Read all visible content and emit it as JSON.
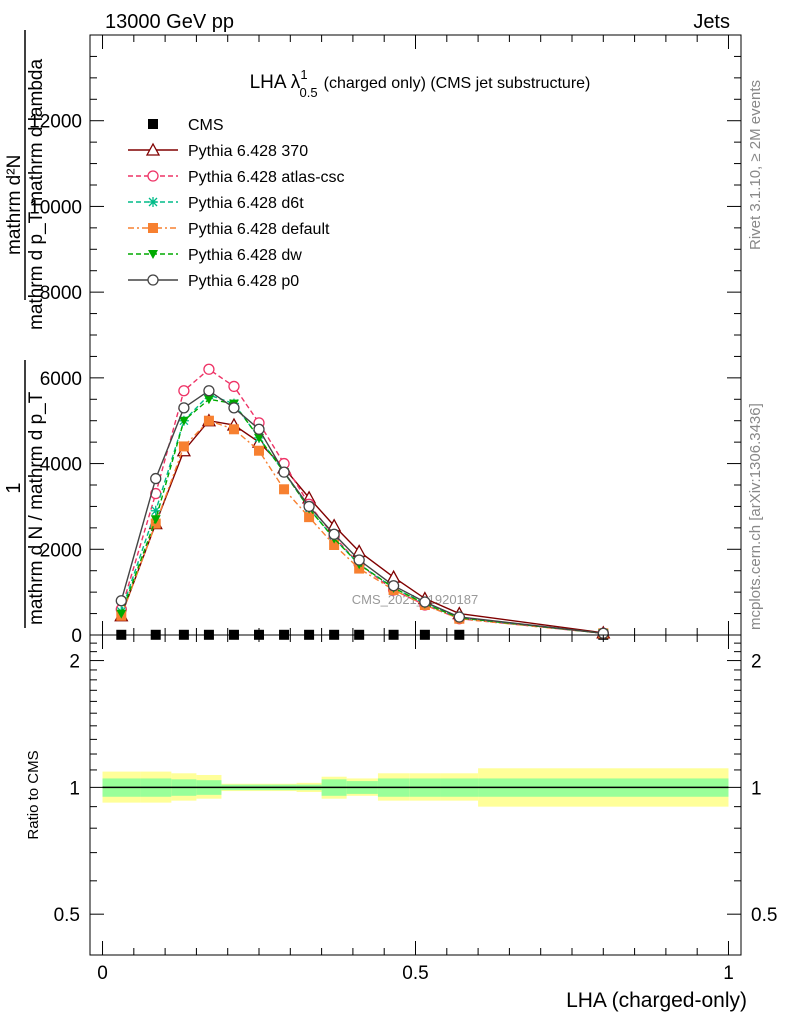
{
  "header": {
    "left": "13000 GeV pp",
    "right": "Jets"
  },
  "side_labels": {
    "rivet": "Rivet 3.1.10, ≥ 2M events",
    "mcplots": "mcplots.cern.ch [arXiv:1306.3436]"
  },
  "watermark": "CMS_2021_I1920187",
  "chart_data": [
    {
      "type": "line",
      "title_main": "LHA λ",
      "title_sup": "1",
      "title_sub": "0.5",
      "title_rest": "(charged only) (CMS jet substructure)",
      "ylabel_num": "mathrm d²N",
      "ylabel_den": "mathrm d p_T mathrm d lambda",
      "ylabel_prefix_num": "1",
      "ylabel_prefix_den": "mathrm d N / mathrm d p_T",
      "xlim": [
        -0.02,
        1.02
      ],
      "ylim": [
        0,
        14000
      ],
      "yticks": [
        {
          "value": 0,
          "label": "0"
        },
        {
          "value": 2000,
          "label": "2000"
        },
        {
          "value": 4000,
          "label": "4000"
        },
        {
          "value": 6000,
          "label": "6000"
        },
        {
          "value": 8000,
          "label": "8000"
        },
        {
          "value": 10000,
          "label": "10000"
        },
        {
          "value": 12000,
          "label": "12000"
        }
      ],
      "x": [
        0.03,
        0.085,
        0.13,
        0.17,
        0.21,
        0.25,
        0.29,
        0.33,
        0.37,
        0.41,
        0.465,
        0.515,
        0.57,
        0.8
      ],
      "series": [
        {
          "name": "CMS",
          "color": "#000000",
          "marker": "square",
          "dash": "",
          "values": [
            5,
            5,
            5,
            5,
            5,
            5,
            5,
            5,
            5,
            5,
            5,
            5,
            5,
            5
          ]
        },
        {
          "name": "Pythia 6.428 370",
          "color": "#800000",
          "marker": "triangle-open",
          "dash": "",
          "values": [
            450,
            2600,
            4300,
            5000,
            4900,
            4500,
            3900,
            3200,
            2550,
            1950,
            1350,
            850,
            500,
            50
          ]
        },
        {
          "name": "Pythia 6.428 atlas-csc",
          "color": "#ee3366",
          "marker": "circle-open",
          "dash": "5,3",
          "values": [
            600,
            3300,
            5700,
            6200,
            5800,
            4950,
            4000,
            3050,
            2300,
            1650,
            1050,
            700,
            380,
            40
          ]
        },
        {
          "name": "Pythia 6.428 d6t",
          "color": "#00bb88",
          "marker": "star",
          "dash": "5,3",
          "values": [
            550,
            2900,
            5000,
            5600,
            5400,
            4600,
            3800,
            2950,
            2250,
            1650,
            1100,
            730,
            400,
            40
          ]
        },
        {
          "name": "Pythia 6.428 default",
          "color": "#f78030",
          "marker": "square",
          "dash": "6,3,2,3",
          "values": [
            450,
            2600,
            4400,
            5000,
            4800,
            4300,
            3400,
            2750,
            2100,
            1550,
            1050,
            700,
            380,
            40
          ]
        },
        {
          "name": "Pythia 6.428 dw",
          "color": "#00aa00",
          "marker": "triangle-down",
          "dash": "5,3",
          "values": [
            500,
            2700,
            5000,
            5500,
            5400,
            4600,
            3800,
            2950,
            2250,
            1650,
            1100,
            730,
            400,
            40
          ]
        },
        {
          "name": "Pythia 6.428 p0",
          "color": "#444444",
          "marker": "circle-open",
          "dash": "",
          "values": [
            800,
            3650,
            5300,
            5700,
            5300,
            4800,
            3800,
            3000,
            2350,
            1750,
            1150,
            770,
            420,
            40
          ]
        }
      ]
    },
    {
      "type": "area",
      "ylabel": "Ratio to CMS",
      "xlabel": "LHA (charged-only)",
      "xlim": [
        -0.02,
        1.02
      ],
      "ylim": [
        0.4,
        2.3
      ],
      "log_y": true,
      "xticks": [
        {
          "value": 0,
          "label": "0"
        },
        {
          "value": 0.5,
          "label": "0.5"
        },
        {
          "value": 1,
          "label": "1"
        }
      ],
      "yticks": [
        {
          "value": 0.5,
          "label": "0.5"
        },
        {
          "value": 1,
          "label": "1"
        },
        {
          "value": 2,
          "label": "2"
        }
      ],
      "bins": [
        0,
        0.06,
        0.11,
        0.15,
        0.19,
        0.23,
        0.27,
        0.31,
        0.35,
        0.39,
        0.44,
        0.49,
        0.54,
        0.6,
        1.0
      ],
      "band_stat": [
        [
          0.95,
          1.05
        ],
        [
          0.95,
          1.05
        ],
        [
          0.955,
          1.045
        ],
        [
          0.96,
          1.04
        ],
        [
          0.985,
          1.015
        ],
        [
          0.985,
          1.015
        ],
        [
          0.985,
          1.015
        ],
        [
          0.985,
          1.015
        ],
        [
          0.955,
          1.045
        ],
        [
          0.965,
          1.035
        ],
        [
          0.95,
          1.05
        ],
        [
          0.95,
          1.05
        ],
        [
          0.95,
          1.05
        ],
        [
          0.95,
          1.05
        ],
        [
          0.95,
          1.05
        ]
      ],
      "band_total": [
        [
          0.92,
          1.09
        ],
        [
          0.92,
          1.09
        ],
        [
          0.93,
          1.08
        ],
        [
          0.94,
          1.07
        ],
        [
          0.98,
          1.02
        ],
        [
          0.98,
          1.02
        ],
        [
          0.98,
          1.02
        ],
        [
          0.975,
          1.025
        ],
        [
          0.94,
          1.06
        ],
        [
          0.955,
          1.05
        ],
        [
          0.93,
          1.08
        ],
        [
          0.93,
          1.08
        ],
        [
          0.93,
          1.08
        ],
        [
          0.9,
          1.11
        ],
        [
          0.9,
          1.11
        ]
      ],
      "colors": {
        "total": "#ffff99",
        "stat": "#99ff99",
        "line": "#000000"
      }
    }
  ]
}
